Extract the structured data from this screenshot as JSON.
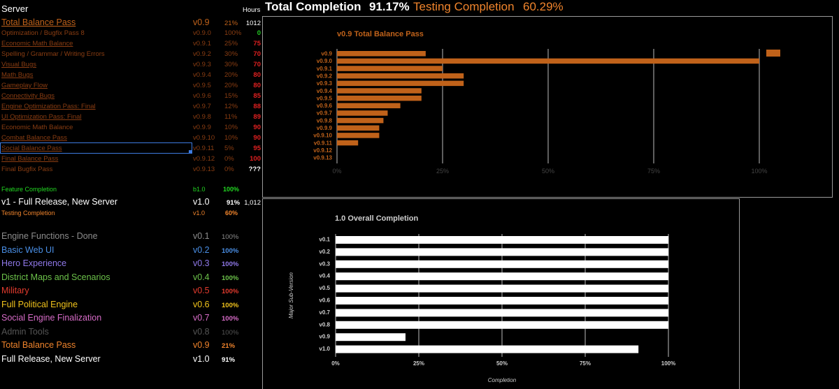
{
  "header": {
    "server_label": "Server",
    "hours_label": "Hours",
    "total_label": "Total Completion",
    "total_value": "91.17%",
    "testing_label": "Testing Completion",
    "testing_value": "60.29%"
  },
  "main_row": {
    "name": "Total Balance Pass",
    "version": "v0.9",
    "pct": "21%",
    "hours": "1012"
  },
  "tasks": [
    {
      "name": "Optimization / Bugfix Pass 8",
      "version": "v0.9.0",
      "pct": "100%",
      "hours": "0",
      "underline": false,
      "hours_color": "#21c821"
    },
    {
      "name": "Economic Math Balance",
      "version": "v0.9.1",
      "pct": "25%",
      "hours": "75",
      "underline": true,
      "hours_color": "#e02020"
    },
    {
      "name": "Spelling / Grammar / Writing Errors",
      "version": "v0.9.2",
      "pct": "30%",
      "hours": "70",
      "underline": false,
      "hours_color": "#e02020"
    },
    {
      "name": "Visual Bugs",
      "version": "v0.9.3",
      "pct": "30%",
      "hours": "70",
      "underline": true,
      "hours_color": "#e02020"
    },
    {
      "name": "Math Bugs",
      "version": "v0.9.4",
      "pct": "20%",
      "hours": "80",
      "underline": true,
      "hours_color": "#e02020"
    },
    {
      "name": "Gameplay Flow",
      "version": "v0.9.5",
      "pct": "20%",
      "hours": "80",
      "underline": true,
      "hours_color": "#e02020"
    },
    {
      "name": "Connectivity Bugs",
      "version": "v0.9.6",
      "pct": "15%",
      "hours": "85",
      "underline": true,
      "hours_color": "#e02020"
    },
    {
      "name": "Engine Optimization Pass: Final",
      "version": "v0.9.7",
      "pct": "12%",
      "hours": "88",
      "underline": true,
      "hours_color": "#e02020"
    },
    {
      "name": "UI Optimization Pass: Final",
      "version": "v0.9.8",
      "pct": "11%",
      "hours": "89",
      "underline": true,
      "hours_color": "#e02020"
    },
    {
      "name": "Economic Math Balance",
      "version": "v0.9.9",
      "pct": "10%",
      "hours": "90",
      "underline": false,
      "hours_color": "#e02020"
    },
    {
      "name": "Combat Balance Pass",
      "version": "v0.9.10",
      "pct": "10%",
      "hours": "90",
      "underline": true,
      "hours_color": "#e02020"
    },
    {
      "name": "Social Balance Pass",
      "version": "v0.9.11",
      "pct": "5%",
      "hours": "95",
      "underline": true,
      "hours_color": "#e02020"
    },
    {
      "name": "Final Balance Pass",
      "version": "v0.9.12",
      "pct": "0%",
      "hours": "100",
      "underline": true,
      "hours_color": "#e02020"
    },
    {
      "name": "Final Bugfix Pass",
      "version": "v0.9.13",
      "pct": "0%",
      "hours": "???",
      "underline": false,
      "hours_color": "#ffffff"
    }
  ],
  "feature_row": {
    "name": "Feature Completion",
    "version": "b1.0",
    "pct": "100%"
  },
  "release_row": {
    "name": "v1 - Full Release, New Server",
    "version": "v1.0",
    "pct": "91%",
    "hours": "1,012"
  },
  "testing_row": {
    "name": "Testing Completion",
    "version": "v1.0",
    "pct": "60%"
  },
  "milestones": [
    {
      "name": "Engine Functions - Done",
      "version": "v0.1",
      "pct": "100%",
      "color": "#8c8c8c",
      "pct_color": "#8c8c8c"
    },
    {
      "name": "Basic Web UI",
      "version": "v0.2",
      "pct": "100%",
      "color": "#4a8fe6",
      "pct_color": "#4a8fe6"
    },
    {
      "name": "Hero Experience",
      "version": "v0.3",
      "pct": "100%",
      "color": "#8f78e8",
      "pct_color": "#8f78e8"
    },
    {
      "name": "District Maps and Scenarios",
      "version": "v0.4",
      "pct": "100%",
      "color": "#6cc24a",
      "pct_color": "#6cc24a"
    },
    {
      "name": "Military",
      "version": "v0.5",
      "pct": "100%",
      "color": "#e33b2e",
      "pct_color": "#e33b2e"
    },
    {
      "name": "Full Political Engine",
      "version": "v0.6",
      "pct": "100%",
      "color": "#f2c41c",
      "pct_color": "#f2c41c"
    },
    {
      "name": "Social Engine Finalization",
      "version": "v0.7",
      "pct": "100%",
      "color": "#d86cc8",
      "pct_color": "#d86cc8"
    },
    {
      "name": "Admin Tools",
      "version": "v0.8",
      "pct": "100%",
      "color": "#555555",
      "pct_color": "#555555"
    },
    {
      "name": "Total Balance Pass",
      "version": "v0.9",
      "pct": "21%",
      "color": "#f0842c",
      "pct_color": "#f0842c"
    },
    {
      "name": "Full Release, New Server",
      "version": "v1.0",
      "pct": "91%",
      "color": "#ffffff",
      "pct_color": "#ffffff"
    }
  ],
  "colors": {
    "orange": "#c0621a",
    "task_text": "#8a3d12",
    "grid": "#cfcfcf",
    "bar_white": "#ffffff"
  },
  "chart_data": [
    {
      "type": "bar",
      "orientation": "horizontal",
      "title": "v0.9 Total Balance Pass",
      "categories": [
        "v0.9",
        "v0.9.0",
        "v0.9.1",
        "v0.9.2",
        "v0.9.3",
        "v0.9.4",
        "v0.9.5",
        "v0.9.6",
        "v0.9.7",
        "v0.9.8",
        "v0.9.9",
        "v0.9.10",
        "v0.9.11",
        "v0.9.12",
        "v0.9.13"
      ],
      "values": [
        21,
        100,
        25,
        30,
        30,
        20,
        20,
        15,
        12,
        11,
        10,
        10,
        5,
        0,
        0
      ],
      "xlim": [
        0,
        100
      ],
      "tick_labels": [
        "0%",
        "25%",
        "50%",
        "75%",
        "100%"
      ],
      "legend": "top-right",
      "grid": true
    },
    {
      "type": "bar",
      "orientation": "horizontal",
      "title": "1.0 Overall Completion",
      "categories": [
        "v0.1",
        "v0.2",
        "v0.3",
        "v0.4",
        "v0.5",
        "v0.6",
        "v0.7",
        "v0.8",
        "v0.9",
        "v1.0"
      ],
      "values": [
        100,
        100,
        100,
        100,
        100,
        100,
        100,
        100,
        21,
        91
      ],
      "xlim": [
        0,
        100
      ],
      "tick_labels": [
        "0%",
        "25%",
        "50%",
        "75%",
        "100%"
      ],
      "xlabel": "Completion",
      "ylabel": "Major Sub-Version",
      "grid": true
    }
  ]
}
